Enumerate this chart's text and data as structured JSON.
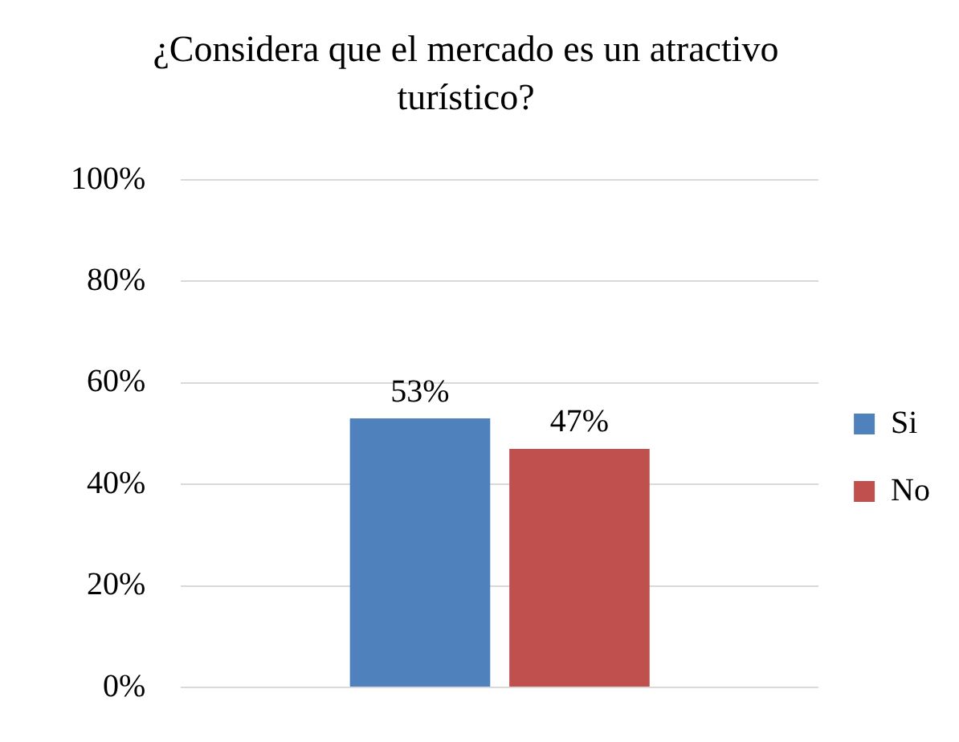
{
  "chart_data": {
    "type": "bar",
    "title": "¿Considera que el mercado es un atractivo turístico?",
    "categories": [
      null
    ],
    "series": [
      {
        "name": "Si",
        "color": "#4f81bd",
        "values": [
          53
        ],
        "value_labels": [
          "53%"
        ]
      },
      {
        "name": "No",
        "color": "#c0504d",
        "values": [
          47
        ],
        "value_labels": [
          "47%"
        ]
      }
    ],
    "ylim": [
      0,
      100
    ],
    "yticks": [
      {
        "value": 0,
        "label": "0%"
      },
      {
        "value": 20,
        "label": "20%"
      },
      {
        "value": 40,
        "label": "40%"
      },
      {
        "value": 60,
        "label": "60%"
      },
      {
        "value": 80,
        "label": "80%"
      },
      {
        "value": 100,
        "label": "100%"
      }
    ],
    "grid": "y",
    "legend": "right"
  }
}
